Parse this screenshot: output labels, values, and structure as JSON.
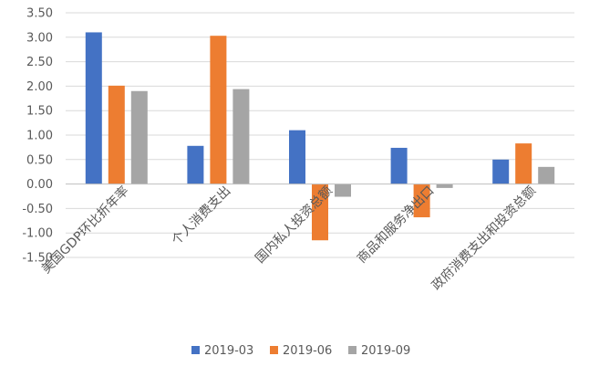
{
  "chart_data": {
    "type": "bar",
    "title": "",
    "xlabel": "",
    "ylabel": "",
    "categories": [
      "美国GDP环比折年率",
      "个人消费支出",
      "国内私人投资总额",
      "商品和服务净出口",
      "政府消费支出和投资总额"
    ],
    "series": [
      {
        "name": "2019-03",
        "color": "#4472C4",
        "values": [
          3.1,
          0.78,
          1.1,
          0.74,
          0.5
        ]
      },
      {
        "name": "2019-06",
        "color": "#ED7D31",
        "values": [
          2.01,
          3.03,
          -1.15,
          -0.68,
          0.83
        ]
      },
      {
        "name": "2019-09",
        "color": "#A5A5A5",
        "values": [
          1.9,
          1.94,
          -0.26,
          -0.08,
          0.35
        ]
      }
    ],
    "ylim": [
      -1.5,
      3.5
    ],
    "yticks": [
      "3.50",
      "3.00",
      "2.50",
      "2.00",
      "1.50",
      "1.00",
      "0.50",
      "0.00",
      "-0.50",
      "-1.00",
      "-1.50"
    ],
    "grid": true,
    "legend_position": "bottom"
  }
}
